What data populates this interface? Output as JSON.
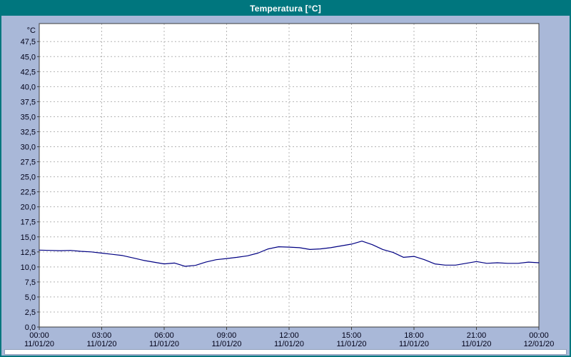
{
  "title": "Temperatura [°C]",
  "colors": {
    "titlebar_bg": "#00767e",
    "titlebar_text": "#ffffff",
    "window_border": "#00767e",
    "background": "#a9b8d8",
    "plot_bg": "#ffffff",
    "grid": "#b4b4b4",
    "plot_border": "#3c3c3c",
    "axis_text": "#000018",
    "line": "#000082"
  },
  "chart_data": {
    "type": "line",
    "title": "Temperatura [°C]",
    "unit_label": "°C",
    "grid": true,
    "legend": "none",
    "xlabel": "",
    "ylabel": "°C",
    "ylim": [
      0,
      50.5
    ],
    "y_ticks": [
      0,
      2.5,
      5,
      7.5,
      10,
      12.5,
      15,
      17.5,
      20,
      22.5,
      25,
      27.5,
      30,
      32.5,
      35,
      37.5,
      40,
      42.5,
      45,
      47.5
    ],
    "y_tick_labels": [
      "0,0",
      "2,5",
      "5,0",
      "7,5",
      "10,0",
      "12,5",
      "15,0",
      "17,5",
      "20,0",
      "22,5",
      "25,0",
      "27,5",
      "30,0",
      "32,5",
      "35,0",
      "37,5",
      "40,0",
      "42,5",
      "45,0",
      "47,5"
    ],
    "x_ticks": [
      0,
      3,
      6,
      9,
      12,
      15,
      18,
      21,
      24
    ],
    "x_tick_time_labels": [
      "00:00",
      "03:00",
      "06:00",
      "09:00",
      "12:00",
      "15:00",
      "18:00",
      "21:00",
      "00:00"
    ],
    "x_tick_date_labels": [
      "11/01/20",
      "11/01/20",
      "11/01/20",
      "11/01/20",
      "11/01/20",
      "11/01/20",
      "11/01/20",
      "11/01/20",
      "12/01/20"
    ],
    "series": [
      {
        "name": "Temperatura",
        "x": [
          0,
          0.5,
          1,
          1.5,
          2,
          2.5,
          3,
          3.5,
          4,
          4.5,
          5,
          5.5,
          6,
          6.5,
          7,
          7.5,
          8,
          8.5,
          9,
          9.5,
          10,
          10.5,
          11,
          11.5,
          12,
          12.5,
          13,
          13.5,
          14,
          14.5,
          15,
          15.5,
          16,
          16.5,
          17,
          17.5,
          18,
          18.5,
          19,
          19.5,
          20,
          20.5,
          21,
          21.5,
          22,
          22.5,
          23,
          23.5,
          24
        ],
        "y": [
          12.8,
          12.75,
          12.7,
          12.75,
          12.6,
          12.5,
          12.3,
          12.1,
          11.9,
          11.5,
          11.1,
          10.8,
          10.5,
          10.65,
          10.1,
          10.25,
          10.8,
          11.2,
          11.4,
          11.6,
          11.85,
          12.3,
          13.0,
          13.35,
          13.3,
          13.2,
          12.9,
          13.0,
          13.2,
          13.5,
          13.8,
          14.3,
          13.7,
          12.9,
          12.4,
          11.6,
          11.75,
          11.2,
          10.5,
          10.3,
          10.3,
          10.6,
          10.9,
          10.6,
          10.7,
          10.6,
          10.6,
          10.8,
          10.7
        ]
      }
    ]
  }
}
